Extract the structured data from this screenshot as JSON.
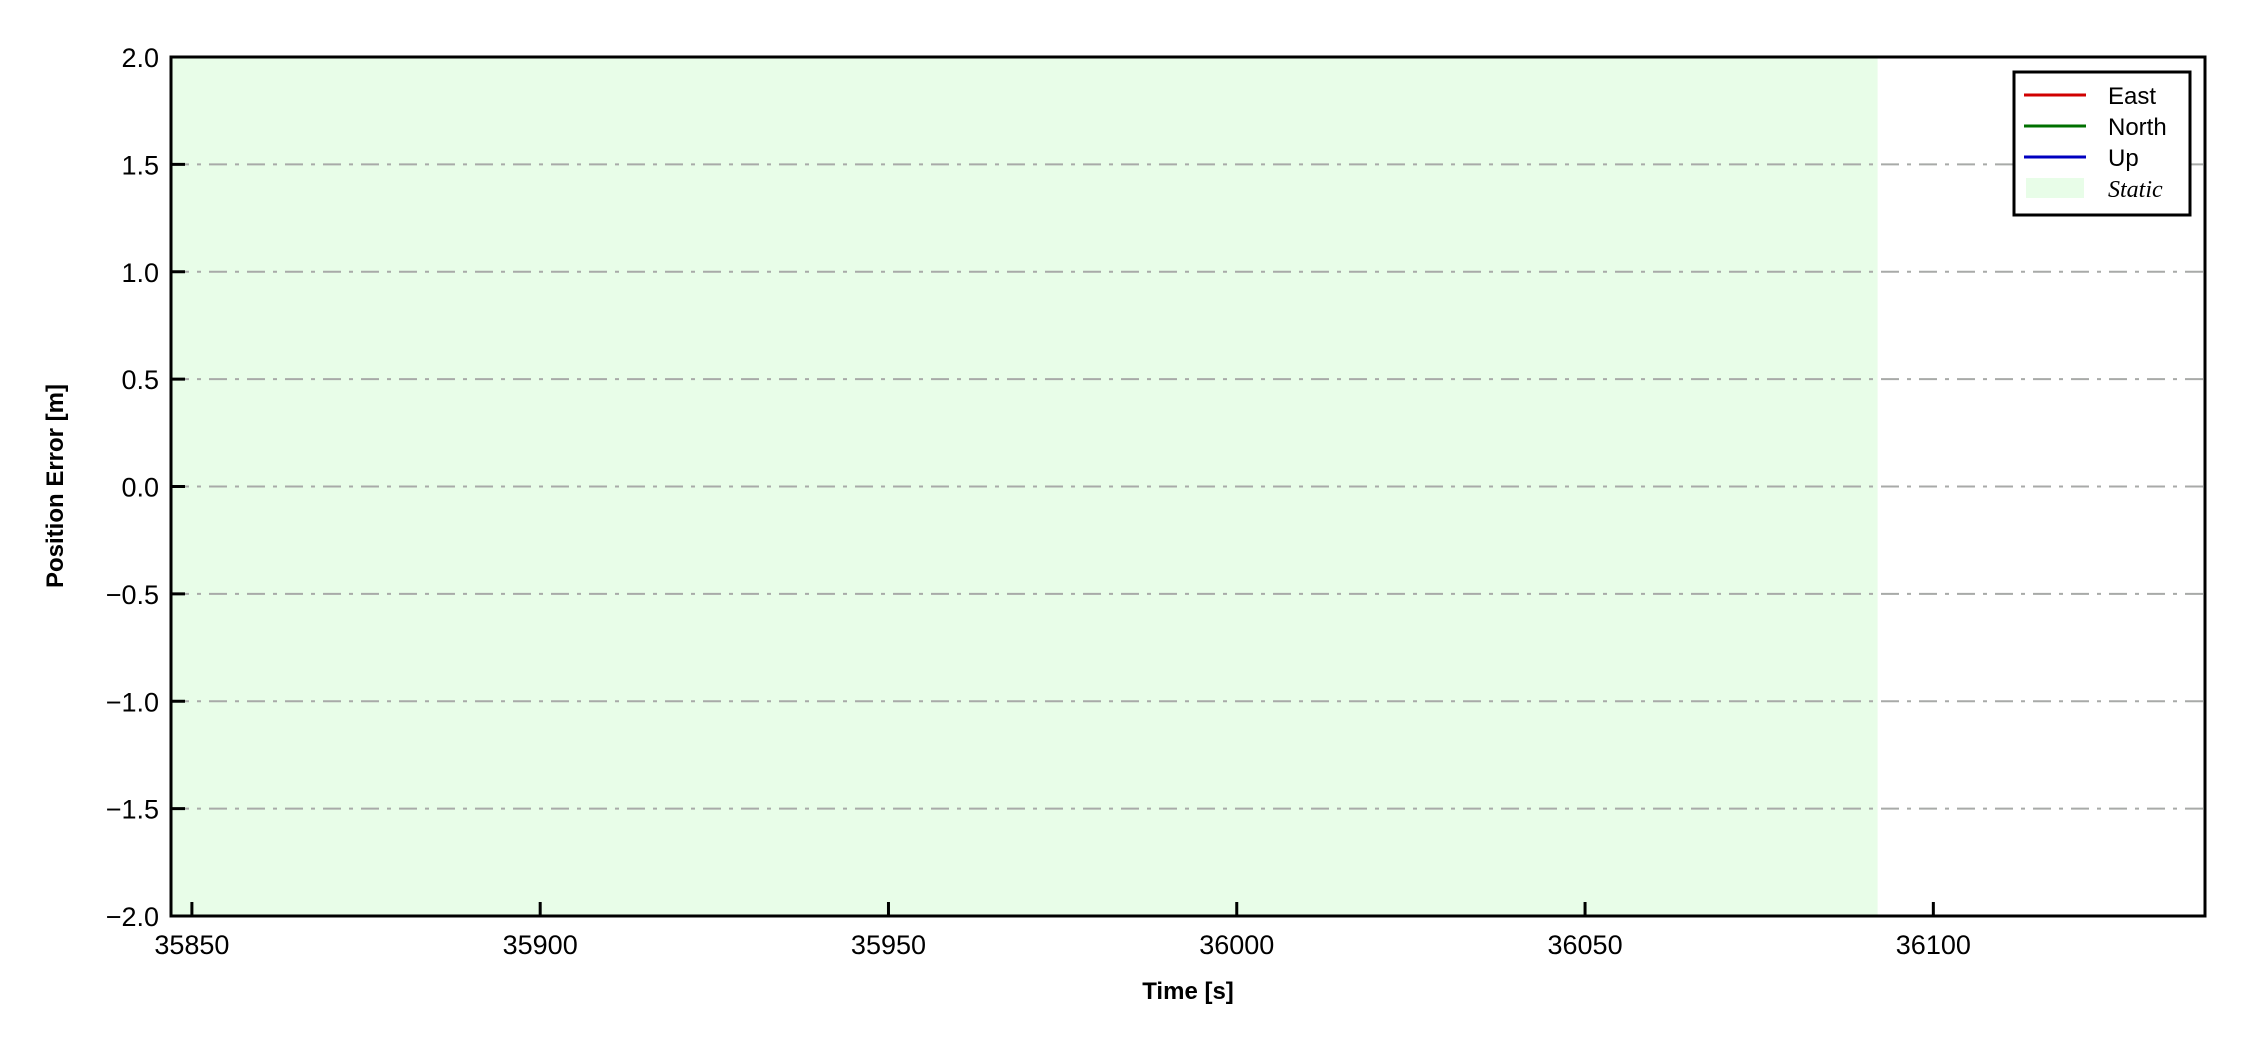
{
  "chart_data": {
    "type": "line",
    "title": "",
    "xlabel": "Time [s]",
    "ylabel": "Position Error [m]",
    "xlim": [
      35847,
      36139
    ],
    "ylim": [
      -2.0,
      2.0
    ],
    "xticks": [
      35850,
      35900,
      35950,
      36000,
      36050,
      36100
    ],
    "xtick_labels": [
      "35850",
      "35900",
      "35950",
      "36000",
      "36050",
      "36100"
    ],
    "yticks": [
      2.0,
      1.5,
      1.0,
      0.5,
      0.0,
      -0.5,
      -1.0,
      -1.5,
      -2.0
    ],
    "ytick_labels": [
      "2.0",
      "1.5",
      "1.0",
      "0.5",
      "0.0",
      "−0.5",
      "−1.0",
      "−1.5",
      "−2.0"
    ],
    "grid": {
      "axis": "y",
      "style": "dash-dot",
      "color": "#a8aaa8"
    },
    "legend": {
      "placement": "top-right"
    },
    "series": [
      {
        "name": "East",
        "color": "#d00000",
        "x": [],
        "y": []
      },
      {
        "name": "North",
        "color": "#007000",
        "x": [],
        "y": []
      },
      {
        "name": "Up",
        "color": "#0000c0",
        "x": [],
        "y": []
      }
    ],
    "spans": [
      {
        "name": "Static",
        "x_start": 35847,
        "x_end": 36092,
        "color": "#e8fde8"
      }
    ]
  }
}
